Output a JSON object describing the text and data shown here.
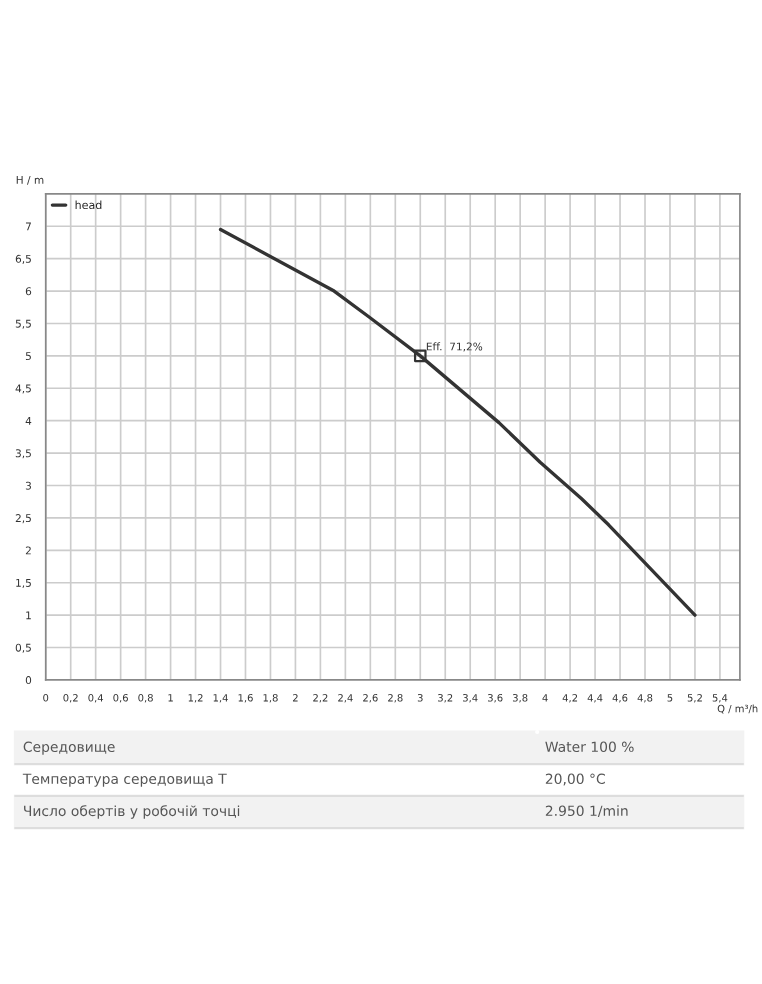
{
  "chart_data": {
    "type": "line",
    "xlabel": "Q / m³/h",
    "ylabel": "H / m",
    "xlim": [
      0,
      5.56
    ],
    "ylim": [
      0,
      7.5
    ],
    "xticks": [
      0,
      {
        "value": 0.2,
        "label": "0,2"
      },
      {
        "value": 0.4,
        "label": "0,4"
      },
      {
        "value": 0.6,
        "label": "0,6"
      },
      {
        "value": 0.8,
        "label": "0,8"
      },
      1,
      {
        "value": 1.2,
        "label": "1,2"
      },
      {
        "value": 1.4,
        "label": "1,4"
      },
      {
        "value": 1.6,
        "label": "1,6"
      },
      {
        "value": 1.8,
        "label": "1,8"
      },
      2,
      {
        "value": 2.2,
        "label": "2,2"
      },
      {
        "value": 2.4,
        "label": "2,4"
      },
      {
        "value": 2.6,
        "label": "2,6"
      },
      {
        "value": 2.8,
        "label": "2,8"
      },
      3,
      {
        "value": 3.2,
        "label": "3,2"
      },
      {
        "value": 3.4,
        "label": "3,4"
      },
      {
        "value": 3.6,
        "label": "3,6"
      },
      {
        "value": 3.8,
        "label": "3,8"
      },
      4,
      {
        "value": 4.2,
        "label": "4,2"
      },
      {
        "value": 4.4,
        "label": "4,4"
      },
      {
        "value": 4.6,
        "label": "4,6"
      },
      {
        "value": 4.8,
        "label": "4,8"
      },
      5,
      {
        "value": 5.2,
        "label": "5,2"
      },
      {
        "value": 5.4,
        "label": "5,4"
      }
    ],
    "yticks": [
      0,
      {
        "value": 0.5,
        "label": "0,5"
      },
      1,
      {
        "value": 1.5,
        "label": "1,5"
      },
      2,
      {
        "value": 2.5,
        "label": "2,5"
      },
      3,
      {
        "value": 3.5,
        "label": "3,5"
      },
      4,
      {
        "value": 4.5,
        "label": "4,5"
      },
      5,
      {
        "value": 5.5,
        "label": "5,5"
      },
      6,
      {
        "value": 6.5,
        "label": "6,5"
      },
      7
    ],
    "grid": true,
    "legend": "top left",
    "line_style": "solid",
    "series": [
      {
        "name": "head",
        "color": "#333333",
        "x": [
          1.4,
          2.31,
          2.59,
          3.0,
          3.63,
          3.96,
          4.29,
          4.51,
          5.2
        ],
        "values": [
          6.95,
          6.0,
          5.6,
          5.0,
          3.97,
          3.36,
          2.8,
          2.39,
          1.0
        ]
      },
      {
        "type": "scatter",
        "marker": "square",
        "color": "#333333",
        "x": [
          3.0
        ],
        "values": [
          5.0
        ]
      }
    ],
    "annotations": [
      {
        "text": "Eff.  71,2%",
        "x": 3.0,
        "y": 5.0
      },
      "Середовище",
      "Water 100 %",
      "Температура середовища T",
      "20,00 °C",
      "Число обертів у робочій точці",
      "2.950 1/min"
    ]
  }
}
